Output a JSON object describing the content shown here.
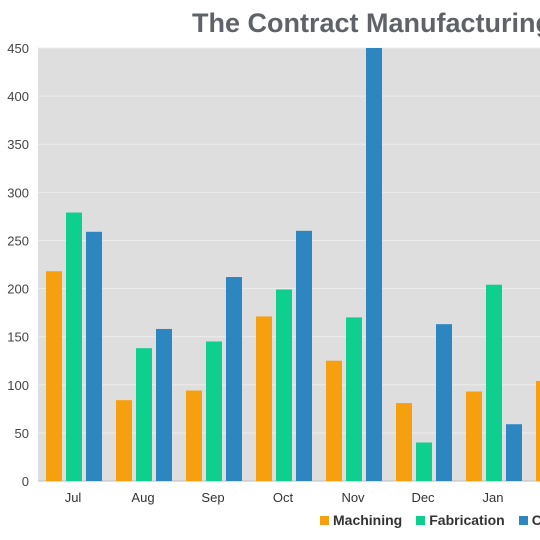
{
  "chart_data": {
    "type": "bar",
    "title": "The Contract Manufacturing",
    "xlabel": "",
    "ylabel": "",
    "categories": [
      "Jul",
      "Aug",
      "Sep",
      "Oct",
      "Nov",
      "Dec",
      "Jan"
    ],
    "series": [
      {
        "name": "Machining",
        "color": "#f7a00f",
        "values": [
          218,
          84,
          94,
          171,
          125,
          81,
          93
        ]
      },
      {
        "name": "Fabrication",
        "color": "#0fcf8f",
        "values": [
          279,
          138,
          145,
          199,
          170,
          40,
          204
        ]
      },
      {
        "name": "",
        "color": "#2e86c1",
        "values": [
          259,
          158,
          212,
          260,
          450,
          163,
          59
        ]
      }
    ],
    "partial_next": {
      "category": "",
      "values": [
        104
      ]
    },
    "ylim": [
      0,
      450
    ],
    "yticks": [
      0,
      50,
      100,
      150,
      200,
      250,
      300,
      350,
      400,
      450
    ],
    "grid": true,
    "legend_position": "bottom",
    "plot_background": "#dedede",
    "legend_labels": [
      "Machining",
      "Fabrication",
      "C"
    ]
  }
}
